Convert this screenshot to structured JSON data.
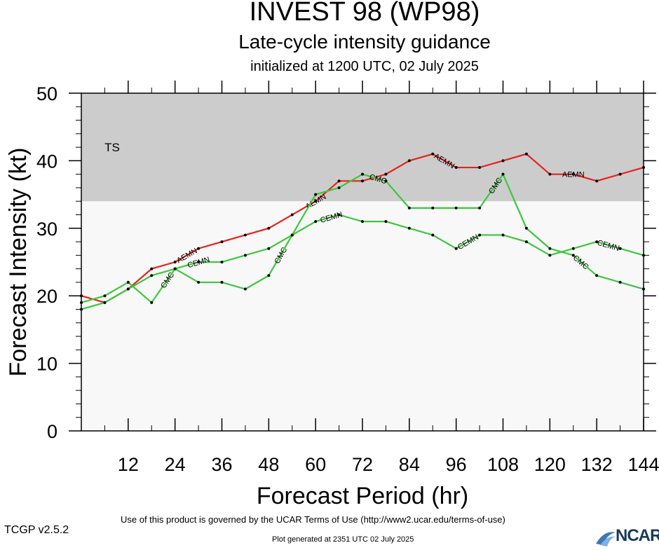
{
  "header": {
    "title": "INVEST 98 (WP98)",
    "subtitle": "Late-cycle intensity guidance",
    "initialized": "initialized at 1200 UTC, 02 July 2025"
  },
  "footer": {
    "version": "TCGP v2.5.2",
    "terms": "Use of this product is governed by the UCAR Terms of Use (http://www2.ucar.edu/terms-of-use)",
    "generated": "Plot generated at 2351 UTC   02 July 2025",
    "logo_text": "NCAR"
  },
  "chart_data": {
    "type": "line",
    "xlabel": "Forecast Period (hr)",
    "ylabel": "Forecast Intensity (kt)",
    "xlim": [
      0,
      144
    ],
    "ylim": [
      0,
      50
    ],
    "xticks": [
      12,
      24,
      36,
      48,
      60,
      72,
      84,
      96,
      108,
      120,
      132,
      144
    ],
    "yticks": [
      0,
      10,
      20,
      30,
      40,
      50
    ],
    "bands": [
      {
        "label": "",
        "from": 0,
        "to": 34,
        "color": "#f8f8f8"
      },
      {
        "label": "TS",
        "from": 34,
        "to": 50,
        "color": "#cccccc"
      }
    ],
    "series": [
      {
        "name": "AEMN",
        "color": "#e8211d",
        "x": [
          0,
          6,
          12,
          18,
          24,
          30,
          36,
          42,
          48,
          54,
          60,
          66,
          72,
          78,
          84,
          90,
          96,
          102,
          108,
          114,
          120,
          126,
          132,
          138,
          144
        ],
        "y": [
          20,
          19,
          21,
          24,
          25,
          27,
          28,
          29,
          30,
          32,
          34,
          37,
          37,
          38,
          40,
          41,
          39,
          39,
          40,
          41,
          38,
          38,
          37,
          38,
          39
        ],
        "label_at_x": [
          27,
          60,
          93,
          126
        ]
      },
      {
        "name": "CMC",
        "color": "#3cc83c",
        "x": [
          0,
          6,
          12,
          18,
          24,
          30,
          36,
          42,
          48,
          54,
          60,
          66,
          72,
          78,
          84,
          90,
          96,
          102,
          108,
          114,
          120,
          126,
          132,
          138,
          144
        ],
        "y": [
          19,
          20,
          22,
          19,
          24,
          22,
          22,
          21,
          23,
          29,
          35,
          36,
          38,
          37,
          33,
          33,
          33,
          33,
          38,
          30,
          27,
          26,
          23,
          22,
          21
        ],
        "label_at_x": [
          22,
          51,
          76,
          106,
          128
        ]
      },
      {
        "name": "CEMN",
        "color": "#3cc83c",
        "x": [
          0,
          6,
          12,
          18,
          24,
          30,
          36,
          42,
          48,
          54,
          60,
          66,
          72,
          78,
          84,
          90,
          96,
          102,
          108,
          114,
          120,
          126,
          132,
          138,
          144
        ],
        "y": [
          18,
          19,
          21,
          23,
          24,
          25,
          25,
          26,
          27,
          29,
          31,
          32,
          31,
          31,
          30,
          29,
          27,
          29,
          29,
          28,
          26,
          27,
          28,
          27,
          26
        ],
        "label_at_x": [
          30,
          64,
          99,
          135
        ]
      }
    ]
  }
}
